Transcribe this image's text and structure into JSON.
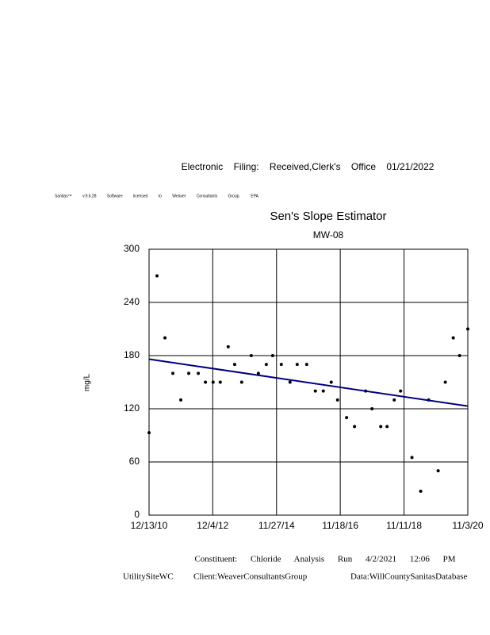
{
  "header": {
    "filing": "Electronic Filing: Received,Clerk's Office 01/21/2022",
    "software": "Sanitas™ v.9.6.28 Software licensed to Weaver Consultants Group. EPA"
  },
  "footer": {
    "run": "Constituent: Chloride Analysis Run 4/2/2021 12:06 PM",
    "site": "UtilitySiteWC",
    "client": "Client:WeaverConsultantsGroup",
    "database": "Data:WillCountySanitasDatabase"
  },
  "chart_data": {
    "type": "scatter",
    "title": "Sen's Slope Estimator",
    "subtitle": "MW-08",
    "y_label": "mg/L",
    "x": [
      "12/13/10",
      "3/13/11",
      "6/11/11",
      "9/9/11",
      "12/8/11",
      "3/7/12",
      "6/23/12",
      "9/12/12",
      "12/8/12",
      "2/27/13",
      "5/28/13",
      "8/9/13",
      "10/28/13",
      "2/13/14",
      "5/5/14",
      "8/3/14",
      "10/14/14",
      "1/20/15",
      "4/29/15",
      "7/19/15",
      "11/4/15",
      "2/10/16",
      "5/10/16",
      "8/8/16",
      "10/19/16",
      "1/29/17",
      "4/29/17",
      "9/2/17",
      "11/13/17",
      "2/20/18",
      "5/3/18",
      "7/23/18",
      "10/3/18",
      "2/9/19",
      "5/19/19",
      "8/17/19",
      "12/3/19",
      "2/22/20",
      "5/22/20",
      "8/2/20",
      "11/3/20"
    ],
    "values": [
      93,
      270,
      200,
      160,
      130,
      160,
      160,
      150,
      150,
      150,
      190,
      170,
      150,
      180,
      160,
      170,
      180,
      170,
      150,
      170,
      170,
      140,
      140,
      150,
      130,
      110,
      100,
      140,
      120,
      100,
      100,
      130,
      140,
      65,
      27,
      130,
      50,
      150,
      200,
      180,
      210
    ],
    "color": "#000000",
    "trend": {
      "x": [
        "12/13/10",
        "11/3/20"
      ],
      "values": [
        176,
        123
      ],
      "color": "#000080"
    },
    "xlim": [
      "12/13/10",
      "11/3/20"
    ],
    "xticks": [
      "12/13/10",
      "12/4/12",
      "11/27/14",
      "11/18/16",
      "11/11/18",
      "11/3/20"
    ],
    "ylim": [
      0,
      300
    ],
    "yticks": [
      0,
      60,
      120,
      180,
      240,
      300
    ],
    "grid": true
  }
}
